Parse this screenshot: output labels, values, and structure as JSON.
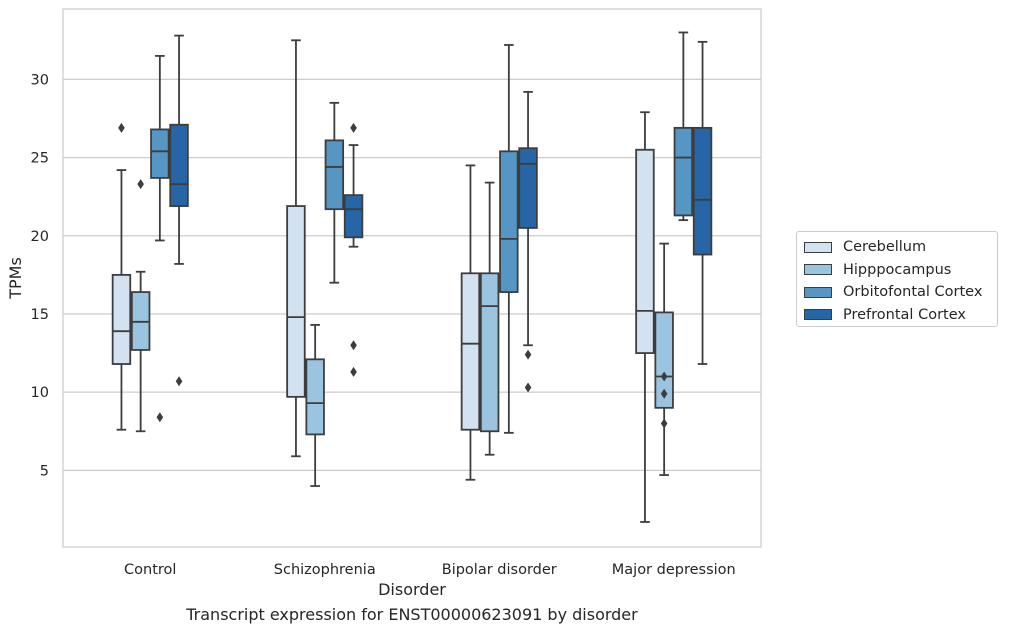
{
  "chart_data": {
    "type": "box",
    "xlabel": "Disorder",
    "ylabel": "TPMs",
    "caption": "Transcript expression for ENST00000623091 by disorder",
    "categories": [
      "Control",
      "Schizophrenia",
      "Bipolar disorder",
      "Major depression"
    ],
    "ylim": [
      0.1,
      34.5
    ],
    "yticks": [
      5,
      10,
      15,
      20,
      25,
      30
    ],
    "grid": "horizontal",
    "legend_position": "right",
    "series": [
      {
        "name": "Cerebellum",
        "color": "#d2e2f1",
        "boxes": [
          {
            "whisker_low": 7.6,
            "q1": 11.8,
            "median": 13.9,
            "q3": 17.5,
            "whisker_high": 24.2,
            "outliers": [
              26.9
            ]
          },
          {
            "whisker_low": 5.9,
            "q1": 9.7,
            "median": 14.8,
            "q3": 21.9,
            "whisker_high": 32.5,
            "outliers": []
          },
          {
            "whisker_low": 4.4,
            "q1": 7.6,
            "median": 13.1,
            "q3": 17.6,
            "whisker_high": 24.5,
            "outliers": []
          },
          {
            "whisker_low": 1.7,
            "q1": 12.5,
            "median": 15.2,
            "q3": 25.5,
            "whisker_high": 27.9,
            "outliers": []
          }
        ]
      },
      {
        "name": "Hipppocampus",
        "color": "#9ac4df",
        "boxes": [
          {
            "whisker_low": 7.5,
            "q1": 12.7,
            "median": 14.5,
            "q3": 16.4,
            "whisker_high": 17.7,
            "outliers": [
              23.3
            ]
          },
          {
            "whisker_low": 4.0,
            "q1": 7.3,
            "median": 9.3,
            "q3": 12.1,
            "whisker_high": 14.3,
            "outliers": []
          },
          {
            "whisker_low": 6.0,
            "q1": 7.5,
            "median": 15.5,
            "q3": 17.6,
            "whisker_high": 23.4,
            "outliers": []
          },
          {
            "whisker_low": 4.7,
            "q1": 9.0,
            "median": 11.0,
            "q3": 15.1,
            "whisker_high": 19.5,
            "outliers": [
              11.0,
              9.9,
              8.0
            ]
          }
        ]
      },
      {
        "name": "Orbitofontal Cortex",
        "color": "#5596c5",
        "boxes": [
          {
            "whisker_low": 19.7,
            "q1": 23.7,
            "median": 25.4,
            "q3": 26.8,
            "whisker_high": 31.5,
            "outliers": [
              8.4
            ]
          },
          {
            "whisker_low": 17.0,
            "q1": 21.7,
            "median": 24.4,
            "q3": 26.1,
            "whisker_high": 28.5,
            "outliers": []
          },
          {
            "whisker_low": 7.4,
            "q1": 16.4,
            "median": 19.8,
            "q3": 25.4,
            "whisker_high": 32.2,
            "outliers": []
          },
          {
            "whisker_low": 21.0,
            "q1": 21.3,
            "median": 25.0,
            "q3": 26.9,
            "whisker_high": 33.0,
            "outliers": []
          }
        ]
      },
      {
        "name": "Prefrontal Cortex",
        "color": "#2666a6",
        "boxes": [
          {
            "whisker_low": 18.2,
            "q1": 21.9,
            "median": 23.3,
            "q3": 27.1,
            "whisker_high": 32.8,
            "outliers": [
              10.7
            ]
          },
          {
            "whisker_low": 19.3,
            "q1": 19.9,
            "median": 21.7,
            "q3": 22.6,
            "whisker_high": 25.8,
            "outliers": [
              26.9,
              13.0,
              11.3
            ]
          },
          {
            "whisker_low": 13.0,
            "q1": 20.5,
            "median": 24.6,
            "q3": 25.6,
            "whisker_high": 29.2,
            "outliers": [
              12.4,
              10.3
            ]
          },
          {
            "whisker_low": 11.8,
            "q1": 18.8,
            "median": 22.3,
            "q3": 26.9,
            "whisker_high": 32.4,
            "outliers": []
          }
        ]
      }
    ]
  }
}
